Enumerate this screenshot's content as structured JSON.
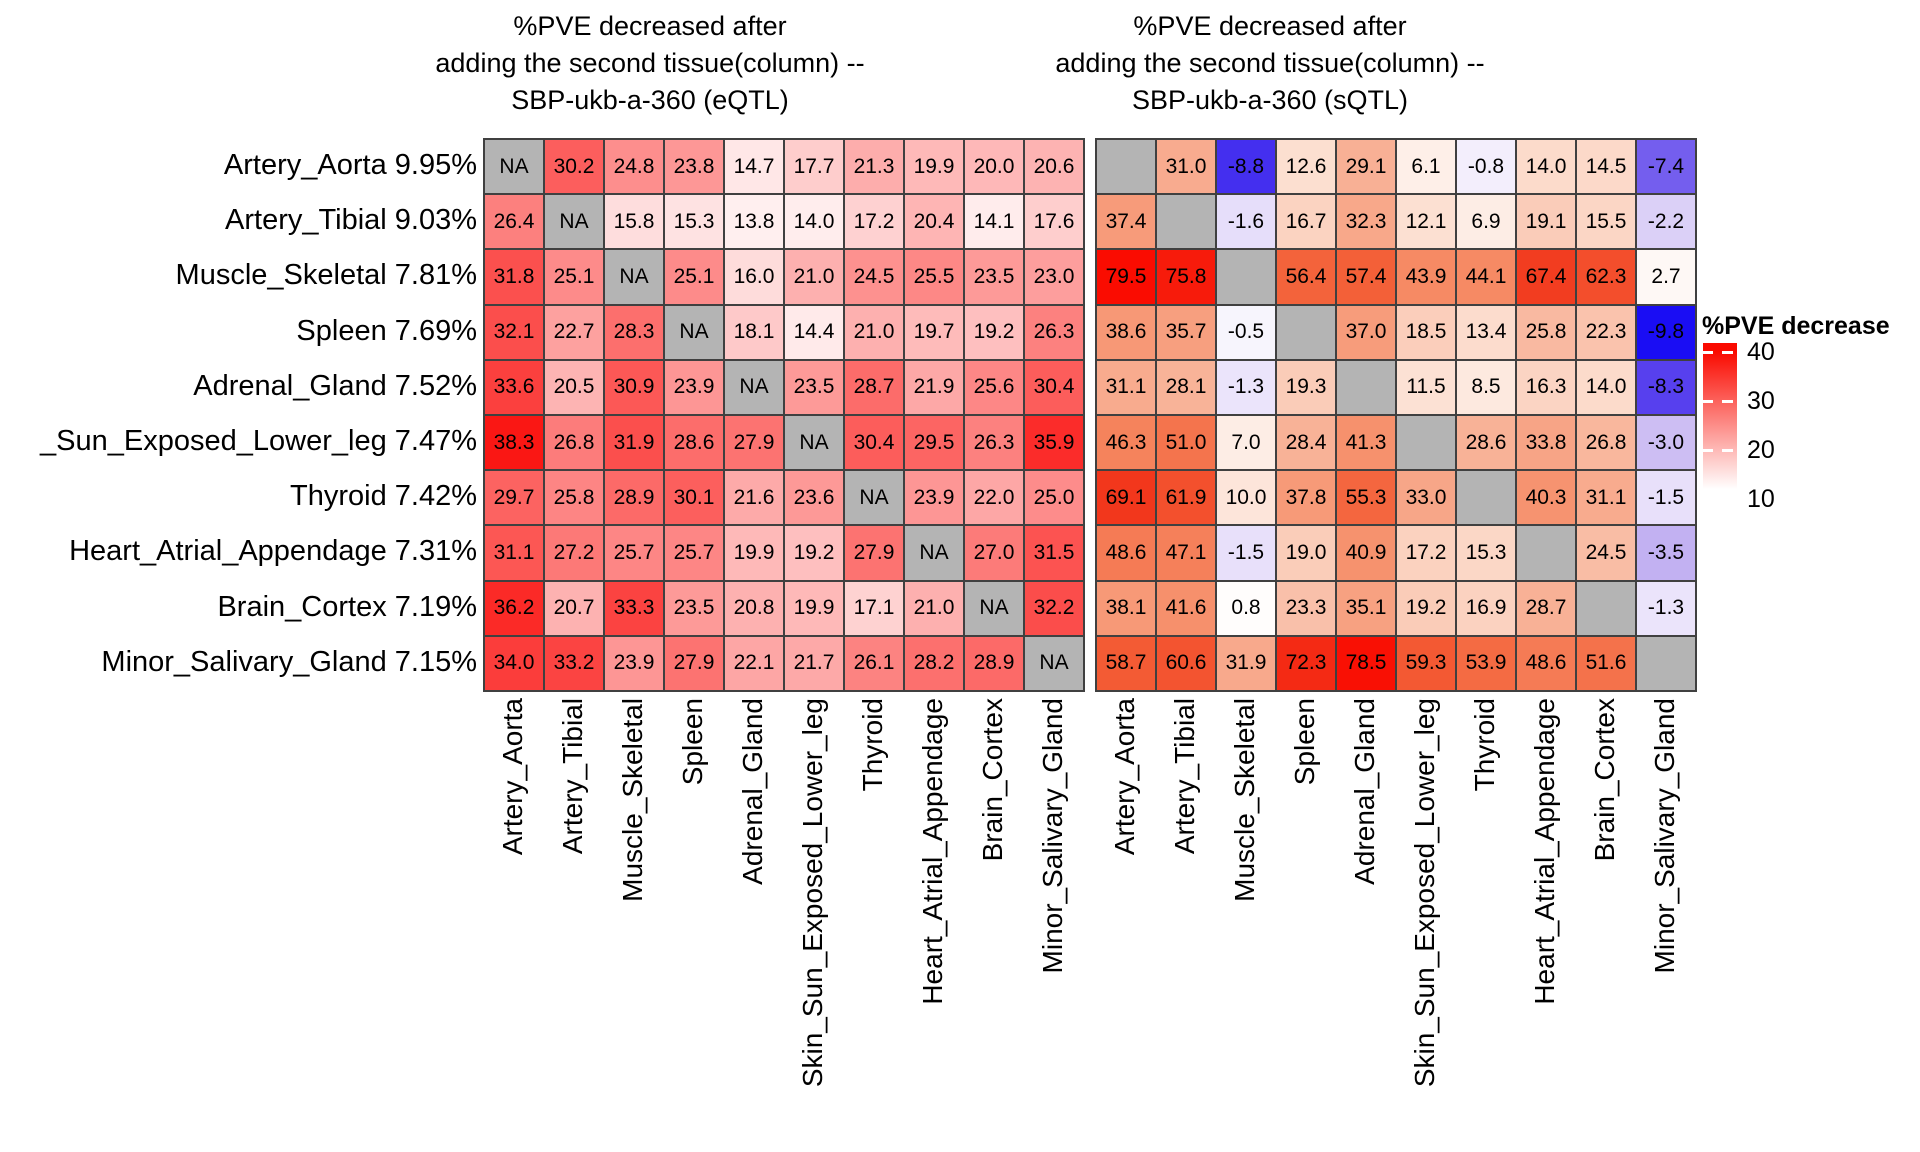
{
  "na_gray": "#b4b4b4",
  "grid_border": "#404040",
  "legend": {
    "title": "%PVE decrease",
    "ticks": [
      "40",
      "30",
      "20",
      "10"
    ]
  },
  "chart_data": [
    {
      "type": "heatmap",
      "title": "%PVE decreased after\nadding the second tissue(column) --\nSBP-ukb-a-360 (eQTL)",
      "na_label": "NA",
      "color_scale": {
        "low": "#ffffff",
        "high": "#fa0a00",
        "white_point": 12,
        "red_point": 40
      },
      "row_labels": [
        "Artery_Aorta 9.95%",
        "Artery_Tibial 9.03%",
        "Muscle_Skeletal 7.81%",
        "Spleen 7.69%",
        "Adrenal_Gland 7.52%",
        "_Sun_Exposed_Lower_leg 7.47%",
        "Thyroid 7.42%",
        "Heart_Atrial_Appendage 7.31%",
        "Brain_Cortex 7.19%",
        "Minor_Salivary_Gland 7.15%"
      ],
      "col_labels": [
        "Artery_Aorta",
        "Artery_Tibial",
        "Muscle_Skeletal",
        "Spleen",
        "Adrenal_Gland",
        "Skin_Sun_Exposed_Lower_leg",
        "Thyroid",
        "Heart_Atrial_Appendage",
        "Brain_Cortex",
        "Minor_Salivary_Gland"
      ],
      "values": [
        [
          null,
          30.2,
          24.8,
          23.8,
          14.7,
          17.7,
          21.3,
          19.9,
          20.0,
          20.6
        ],
        [
          26.4,
          null,
          15.8,
          15.3,
          13.8,
          14.0,
          17.2,
          20.4,
          14.1,
          17.6
        ],
        [
          31.8,
          25.1,
          null,
          25.1,
          16.0,
          21.0,
          24.5,
          25.5,
          23.5,
          23.0
        ],
        [
          32.1,
          22.7,
          28.3,
          null,
          18.1,
          14.4,
          21.0,
          19.7,
          19.2,
          26.3
        ],
        [
          33.6,
          20.5,
          30.9,
          23.9,
          null,
          23.5,
          28.7,
          21.9,
          25.6,
          30.4
        ],
        [
          38.3,
          26.8,
          31.9,
          28.6,
          27.9,
          null,
          30.4,
          29.5,
          26.3,
          35.9
        ],
        [
          29.7,
          25.8,
          28.9,
          30.1,
          21.6,
          23.6,
          null,
          23.9,
          22.0,
          25.0
        ],
        [
          31.1,
          27.2,
          25.7,
          25.7,
          19.9,
          19.2,
          27.9,
          null,
          27.0,
          31.5
        ],
        [
          36.2,
          20.7,
          33.3,
          23.5,
          20.8,
          19.9,
          17.1,
          21.0,
          null,
          32.2
        ],
        [
          34.0,
          33.2,
          23.9,
          27.9,
          22.1,
          21.7,
          26.1,
          28.2,
          28.9,
          null
        ]
      ]
    },
    {
      "type": "heatmap",
      "title": "%PVE decreased after\nadding the second tissue(column) --\nSBP-ukb-a-360 (sQTL)",
      "na_label": "",
      "color_scale": {
        "low": "#1206f5",
        "mid": "#ffffff",
        "high": "#fa0a00",
        "neg_point": -10,
        "white_point": 0,
        "red_point": 80
      },
      "row_labels": [
        "Artery_Aorta 9.95%",
        "Artery_Tibial 9.03%",
        "Muscle_Skeletal 7.81%",
        "Spleen 7.69%",
        "Adrenal_Gland 7.52%",
        "_Sun_Exposed_Lower_leg 7.47%",
        "Thyroid 7.42%",
        "Heart_Atrial_Appendage 7.31%",
        "Brain_Cortex 7.19%",
        "Minor_Salivary_Gland 7.15%"
      ],
      "col_labels": [
        "Artery_Aorta",
        "Artery_Tibial",
        "Muscle_Skeletal",
        "Spleen",
        "Adrenal_Gland",
        "Skin_Sun_Exposed_Lower_leg",
        "Thyroid",
        "Heart_Atrial_Appendage",
        "Brain_Cortex",
        "Minor_Salivary_Gland"
      ],
      "values": [
        [
          null,
          31.0,
          -8.8,
          12.6,
          29.1,
          6.1,
          -0.8,
          14.0,
          14.5,
          -7.4
        ],
        [
          37.4,
          null,
          -1.6,
          16.7,
          32.3,
          12.1,
          6.9,
          19.1,
          15.5,
          -2.2
        ],
        [
          79.5,
          75.8,
          null,
          56.4,
          57.4,
          43.9,
          44.1,
          67.4,
          62.3,
          2.7
        ],
        [
          38.6,
          35.7,
          -0.5,
          null,
          37.0,
          18.5,
          13.4,
          25.8,
          22.3,
          -9.8
        ],
        [
          31.1,
          28.1,
          -1.3,
          19.3,
          null,
          11.5,
          8.5,
          16.3,
          14.0,
          -8.3
        ],
        [
          46.3,
          51.0,
          7.0,
          28.4,
          41.3,
          null,
          28.6,
          33.8,
          26.8,
          -3.0
        ],
        [
          69.1,
          61.9,
          10.0,
          37.8,
          55.3,
          33.0,
          null,
          40.3,
          31.1,
          -1.5
        ],
        [
          48.6,
          47.1,
          -1.5,
          19.0,
          40.9,
          17.2,
          15.3,
          null,
          24.5,
          -3.5
        ],
        [
          38.1,
          41.6,
          0.8,
          23.3,
          35.1,
          19.2,
          16.9,
          28.7,
          null,
          -1.3
        ],
        [
          58.7,
          60.6,
          31.9,
          72.3,
          78.5,
          59.3,
          53.9,
          48.6,
          51.6,
          null
        ]
      ]
    }
  ]
}
